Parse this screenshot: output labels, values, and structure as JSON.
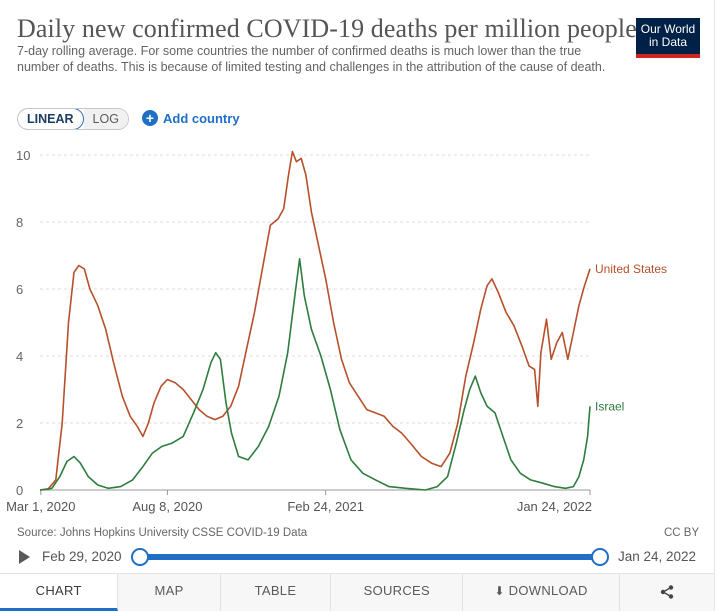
{
  "header": {
    "title": "Daily new confirmed COVID-19 deaths per million people",
    "subtitle": "7-day rolling average. For some countries the number of confirmed deaths is much lower than the true number of deaths. This is because of limited testing and challenges in the attribution of the cause of death.",
    "logo_line1": "Our World",
    "logo_line2": "in Data",
    "brand_color": "#002147",
    "brand_accent": "#ce261e"
  },
  "controls": {
    "scale_linear": "LINEAR",
    "scale_log": "LOG",
    "active_scale": "LINEAR",
    "add_country": "Add country"
  },
  "chart_data": {
    "type": "line",
    "title": "Daily new confirmed COVID-19 deaths per million people",
    "xlabel": "",
    "ylabel": "",
    "x_ticks": [
      "Mar 1, 2020",
      "Aug 8, 2020",
      "Feb 24, 2021",
      "Jan 24, 2022"
    ],
    "y_ticks": [
      0,
      2,
      4,
      6,
      8,
      10
    ],
    "xlim": [
      "2020-02-29",
      "2022-01-24"
    ],
    "ylim": [
      0,
      10
    ],
    "grid": "horizontal-dashed",
    "legend": "line-end labels",
    "series": [
      {
        "name": "United States",
        "color": "#b7502a",
        "points": [
          [
            "2020-02-29",
            0.0
          ],
          [
            "2020-03-10",
            0.02
          ],
          [
            "2020-03-20",
            0.3
          ],
          [
            "2020-03-28",
            2.0
          ],
          [
            "2020-04-05",
            5.0
          ],
          [
            "2020-04-12",
            6.5
          ],
          [
            "2020-04-18",
            6.7
          ],
          [
            "2020-04-25",
            6.6
          ],
          [
            "2020-05-02",
            6.0
          ],
          [
            "2020-05-12",
            5.5
          ],
          [
            "2020-05-22",
            4.8
          ],
          [
            "2020-06-01",
            3.8
          ],
          [
            "2020-06-12",
            2.8
          ],
          [
            "2020-06-22",
            2.2
          ],
          [
            "2020-07-01",
            1.9
          ],
          [
            "2020-07-08",
            1.6
          ],
          [
            "2020-07-15",
            2.0
          ],
          [
            "2020-07-22",
            2.6
          ],
          [
            "2020-07-31",
            3.1
          ],
          [
            "2020-08-08",
            3.3
          ],
          [
            "2020-08-18",
            3.2
          ],
          [
            "2020-08-28",
            3.0
          ],
          [
            "2020-09-07",
            2.7
          ],
          [
            "2020-09-17",
            2.4
          ],
          [
            "2020-09-27",
            2.2
          ],
          [
            "2020-10-07",
            2.1
          ],
          [
            "2020-10-17",
            2.2
          ],
          [
            "2020-10-27",
            2.5
          ],
          [
            "2020-11-06",
            3.1
          ],
          [
            "2020-11-16",
            4.2
          ],
          [
            "2020-11-26",
            5.3
          ],
          [
            "2020-12-06",
            6.6
          ],
          [
            "2020-12-16",
            7.9
          ],
          [
            "2020-12-26",
            8.1
          ],
          [
            "2021-01-02",
            8.4
          ],
          [
            "2021-01-08",
            9.4
          ],
          [
            "2021-01-13",
            10.1
          ],
          [
            "2021-01-18",
            9.8
          ],
          [
            "2021-01-24",
            9.9
          ],
          [
            "2021-01-30",
            9.4
          ],
          [
            "2021-02-06",
            8.3
          ],
          [
            "2021-02-14",
            7.4
          ],
          [
            "2021-02-24",
            6.3
          ],
          [
            "2021-03-06",
            5.0
          ],
          [
            "2021-03-16",
            3.9
          ],
          [
            "2021-03-26",
            3.2
          ],
          [
            "2021-04-06",
            2.8
          ],
          [
            "2021-04-17",
            2.4
          ],
          [
            "2021-04-28",
            2.3
          ],
          [
            "2021-05-09",
            2.2
          ],
          [
            "2021-05-20",
            1.9
          ],
          [
            "2021-05-31",
            1.7
          ],
          [
            "2021-06-11",
            1.4
          ],
          [
            "2021-06-25",
            1.0
          ],
          [
            "2021-07-08",
            0.8
          ],
          [
            "2021-07-20",
            0.7
          ],
          [
            "2021-07-31",
            1.1
          ],
          [
            "2021-08-10",
            2.0
          ],
          [
            "2021-08-20",
            3.4
          ],
          [
            "2021-08-30",
            4.4
          ],
          [
            "2021-09-08",
            5.4
          ],
          [
            "2021-09-16",
            6.1
          ],
          [
            "2021-09-22",
            6.3
          ],
          [
            "2021-09-30",
            5.9
          ],
          [
            "2021-10-10",
            5.3
          ],
          [
            "2021-10-20",
            4.9
          ],
          [
            "2021-10-30",
            4.3
          ],
          [
            "2021-11-08",
            3.7
          ],
          [
            "2021-11-15",
            3.6
          ],
          [
            "2021-11-19",
            2.5
          ],
          [
            "2021-11-23",
            4.1
          ],
          [
            "2021-11-30",
            5.1
          ],
          [
            "2021-12-06",
            3.9
          ],
          [
            "2021-12-13",
            4.4
          ],
          [
            "2021-12-20",
            4.7
          ],
          [
            "2021-12-27",
            3.9
          ],
          [
            "2022-01-03",
            4.7
          ],
          [
            "2022-01-10",
            5.5
          ],
          [
            "2022-01-17",
            6.1
          ],
          [
            "2022-01-24",
            6.6
          ]
        ]
      },
      {
        "name": "Israel",
        "color": "#2e7d3e",
        "points": [
          [
            "2020-02-29",
            0.0
          ],
          [
            "2020-03-15",
            0.05
          ],
          [
            "2020-03-25",
            0.4
          ],
          [
            "2020-04-03",
            0.85
          ],
          [
            "2020-04-12",
            1.0
          ],
          [
            "2020-04-20",
            0.8
          ],
          [
            "2020-04-30",
            0.4
          ],
          [
            "2020-05-12",
            0.15
          ],
          [
            "2020-05-25",
            0.05
          ],
          [
            "2020-06-10",
            0.1
          ],
          [
            "2020-06-25",
            0.3
          ],
          [
            "2020-07-08",
            0.7
          ],
          [
            "2020-07-20",
            1.1
          ],
          [
            "2020-08-01",
            1.3
          ],
          [
            "2020-08-14",
            1.4
          ],
          [
            "2020-08-28",
            1.6
          ],
          [
            "2020-09-10",
            2.3
          ],
          [
            "2020-09-22",
            3.0
          ],
          [
            "2020-10-02",
            3.8
          ],
          [
            "2020-10-08",
            4.1
          ],
          [
            "2020-10-14",
            3.9
          ],
          [
            "2020-10-21",
            2.6
          ],
          [
            "2020-10-28",
            1.7
          ],
          [
            "2020-11-06",
            1.0
          ],
          [
            "2020-11-18",
            0.9
          ],
          [
            "2020-12-01",
            1.3
          ],
          [
            "2020-12-14",
            1.9
          ],
          [
            "2020-12-27",
            2.8
          ],
          [
            "2021-01-07",
            4.1
          ],
          [
            "2021-01-15",
            5.6
          ],
          [
            "2021-01-22",
            6.9
          ],
          [
            "2021-01-28",
            5.8
          ],
          [
            "2021-02-06",
            4.8
          ],
          [
            "2021-02-18",
            4.0
          ],
          [
            "2021-03-02",
            3.0
          ],
          [
            "2021-03-14",
            1.8
          ],
          [
            "2021-03-28",
            0.9
          ],
          [
            "2021-04-12",
            0.5
          ],
          [
            "2021-04-28",
            0.3
          ],
          [
            "2021-05-15",
            0.1
          ],
          [
            "2021-06-05",
            0.05
          ],
          [
            "2021-06-30",
            0.0
          ],
          [
            "2021-07-15",
            0.1
          ],
          [
            "2021-07-28",
            0.4
          ],
          [
            "2021-08-08",
            1.4
          ],
          [
            "2021-08-18",
            2.4
          ],
          [
            "2021-08-25",
            3.0
          ],
          [
            "2021-09-01",
            3.4
          ],
          [
            "2021-09-08",
            2.9
          ],
          [
            "2021-09-16",
            2.5
          ],
          [
            "2021-09-26",
            2.3
          ],
          [
            "2021-10-06",
            1.6
          ],
          [
            "2021-10-16",
            0.9
          ],
          [
            "2021-10-28",
            0.5
          ],
          [
            "2021-11-10",
            0.3
          ],
          [
            "2021-11-26",
            0.2
          ],
          [
            "2021-12-10",
            0.1
          ],
          [
            "2021-12-24",
            0.05
          ],
          [
            "2022-01-03",
            0.1
          ],
          [
            "2022-01-10",
            0.4
          ],
          [
            "2022-01-16",
            0.9
          ],
          [
            "2022-01-21",
            1.6
          ],
          [
            "2022-01-24",
            2.5
          ]
        ]
      }
    ]
  },
  "footer": {
    "source": "Source: Johns Hopkins University CSSE COVID-19 Data",
    "license": "CC BY"
  },
  "timeline": {
    "start_label": "Feb 29, 2020",
    "end_label": "Jan 24, 2022",
    "start_fraction": 0,
    "end_fraction": 1
  },
  "tabs": {
    "chart": "CHART",
    "map": "MAP",
    "table": "TABLE",
    "sources": "SOURCES",
    "download": "DOWNLOAD",
    "share_icon": "share-icon"
  }
}
